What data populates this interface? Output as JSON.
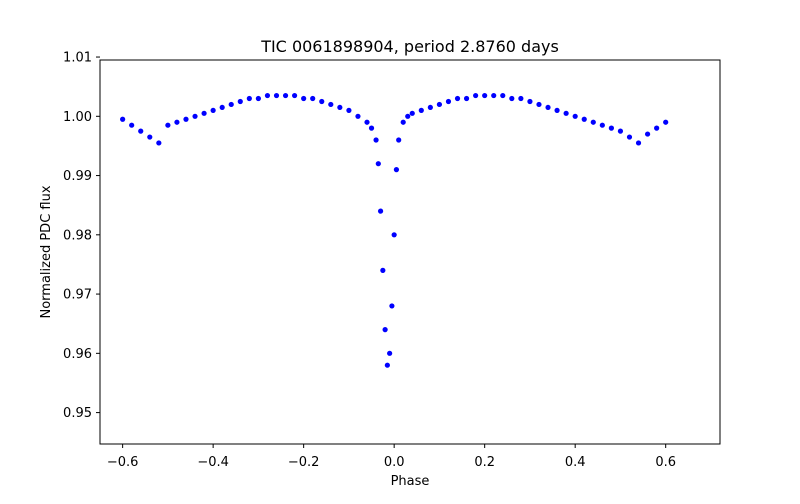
{
  "chart_data": {
    "type": "scatter",
    "title": "TIC 0061898904, period 2.8760 days",
    "xlabel": "Phase",
    "ylabel": "Normalized PDC flux",
    "xlim": [
      -0.65,
      0.72
    ],
    "ylim": [
      0.9447,
      1.0095
    ],
    "x_ticks": [
      -0.6,
      -0.4,
      -0.2,
      0.0,
      0.2,
      0.4,
      0.6
    ],
    "x_tick_labels": [
      "−0.6",
      "−0.4",
      "−0.2",
      "0.0",
      "0.2",
      "0.4",
      "0.6"
    ],
    "y_ticks": [
      0.95,
      0.96,
      0.97,
      0.98,
      0.99,
      1.0,
      1.01
    ],
    "y_tick_labels": [
      "0.95",
      "0.96",
      "0.97",
      "0.98",
      "0.99",
      "1.00",
      "1.01"
    ],
    "marker_color": "#0000ff",
    "grid": false,
    "legend": "none",
    "series": [
      {
        "x": [
          -0.6,
          -0.58,
          -0.56,
          -0.54,
          -0.52,
          -0.5,
          -0.48,
          -0.46,
          -0.44,
          -0.42,
          -0.4,
          -0.38,
          -0.36,
          -0.34,
          -0.32,
          -0.3,
          -0.28,
          -0.26,
          -0.24,
          -0.22,
          -0.2,
          -0.18,
          -0.16,
          -0.14,
          -0.12,
          -0.1,
          -0.08,
          -0.06,
          -0.05,
          -0.04,
          -0.035,
          -0.03,
          -0.025,
          -0.02,
          -0.015,
          -0.01,
          -0.005,
          0.0,
          0.005,
          0.01,
          0.02,
          0.03,
          0.04,
          0.06,
          0.08,
          0.1,
          0.12,
          0.14,
          0.16,
          0.18,
          0.2,
          0.22,
          0.24,
          0.26,
          0.28,
          0.3,
          0.32,
          0.34,
          0.36,
          0.38,
          0.4,
          0.42,
          0.44,
          0.46,
          0.48,
          0.5,
          0.52,
          0.54,
          0.56,
          0.58,
          0.6
        ],
        "y": [
          0.9995,
          0.9985,
          0.9975,
          0.9965,
          0.9955,
          0.9985,
          0.999,
          0.9995,
          1.0,
          1.0005,
          1.001,
          1.0015,
          1.002,
          1.0025,
          1.003,
          1.003,
          1.0035,
          1.0035,
          1.0035,
          1.0035,
          1.003,
          1.003,
          1.0025,
          1.002,
          1.0015,
          1.001,
          1.0,
          0.999,
          0.998,
          0.996,
          0.992,
          0.984,
          0.974,
          0.964,
          0.958,
          0.96,
          0.968,
          0.98,
          0.991,
          0.996,
          0.999,
          1.0,
          1.0005,
          1.001,
          1.0015,
          1.002,
          1.0025,
          1.003,
          1.003,
          1.0035,
          1.0035,
          1.0035,
          1.0035,
          1.003,
          1.003,
          1.0025,
          1.002,
          1.0015,
          1.001,
          1.0005,
          1.0,
          0.9995,
          0.999,
          0.9985,
          0.998,
          0.9975,
          0.9965,
          0.9955,
          0.997,
          0.998,
          0.999
        ]
      }
    ]
  }
}
